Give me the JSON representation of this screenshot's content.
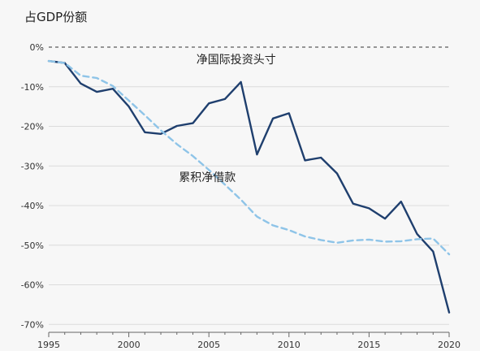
{
  "chart_data": {
    "type": "line",
    "ylabel": "占GDP份额",
    "ylim": [
      -72,
      0
    ],
    "xlim": [
      1995,
      2020
    ],
    "yticks": [
      {
        "value": 0,
        "label": "0%"
      },
      {
        "value": -10,
        "label": "-10%"
      },
      {
        "value": -20,
        "label": "-20%"
      },
      {
        "value": -30,
        "label": "-30%"
      },
      {
        "value": -40,
        "label": "-40%"
      },
      {
        "value": -50,
        "label": "-50%"
      },
      {
        "value": -60,
        "label": "-60%"
      },
      {
        "value": -70,
        "label": "-70%"
      }
    ],
    "xticks": [
      {
        "value": 1995,
        "label": "1995"
      },
      {
        "value": 2000,
        "label": "2000"
      },
      {
        "value": 2005,
        "label": "2005"
      },
      {
        "value": 2010,
        "label": "2010"
      },
      {
        "value": 2015,
        "label": "2015"
      },
      {
        "value": 2020,
        "label": "2020"
      }
    ],
    "zero_line": "dashed",
    "series": [
      {
        "name": "净国际投资头寸",
        "color": "#1f3f6e",
        "style": "solid",
        "x": [
          1995,
          1996,
          1997,
          1998,
          1999,
          2000,
          2001,
          2002,
          2003,
          2004,
          2005,
          2006,
          2007,
          2008,
          2009,
          2010,
          2011,
          2012,
          2013,
          2014,
          2015,
          2016,
          2017,
          2018,
          2019,
          2020
        ],
        "values": [
          -3.5,
          -4,
          -9.2,
          -11.3,
          -10.5,
          -15,
          -21.5,
          -21.9,
          -19.9,
          -19.2,
          -14.2,
          -13.1,
          -8.8,
          -27.1,
          -18,
          -16.7,
          -28.6,
          -27.9,
          -31.9,
          -39.5,
          -40.7,
          -43.3,
          -39,
          -47.2,
          -51.6,
          -67
        ]
      },
      {
        "name": "累积净借款",
        "color": "#8ec4e8",
        "style": "dashed",
        "x": [
          1995,
          1996,
          1997,
          1998,
          1999,
          2000,
          2001,
          2002,
          2003,
          2004,
          2005,
          2006,
          2007,
          2008,
          2009,
          2010,
          2011,
          2012,
          2013,
          2014,
          2015,
          2016,
          2017,
          2018,
          2019,
          2020
        ],
        "values": [
          -3.5,
          -4,
          -7.2,
          -7.8,
          -9.8,
          -13.5,
          -17.2,
          -21,
          -24.5,
          -27.5,
          -31,
          -34.7,
          -38.5,
          -42.8,
          -45,
          -46.2,
          -47.8,
          -48.7,
          -49.4,
          -48.8,
          -48.6,
          -49.1,
          -49,
          -48.5,
          -48.3,
          -52.3
        ]
      }
    ],
    "annotations": [
      {
        "text": "净国际投资头寸",
        "x": 2006.7,
        "y": -4.1
      },
      {
        "text": "累积净借款",
        "x": 2004.9,
        "y": -33.8
      }
    ]
  }
}
